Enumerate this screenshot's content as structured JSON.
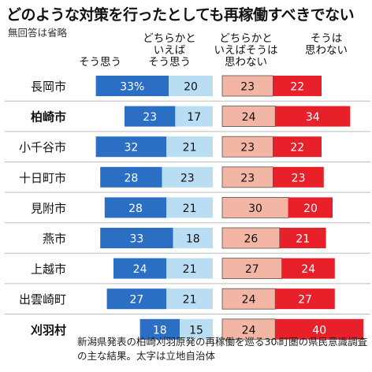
{
  "title": "どのような対策を行ったとしても再稼働すべきでない",
  "note": "無回答は省略",
  "footnote": "新潟県発表の柏崎刈羽原発の再稼働を巡る30ᵢ町圏の県民意識調査の主な結果。太字は立地自治体",
  "colors": {
    "strong_agree": "#2a6fc4",
    "agree": "#b9def3",
    "disagree": "#f3b5a4",
    "strong_disagree": "#e8202a"
  },
  "chart_data": {
    "type": "bar",
    "stacked": true,
    "orientation": "horizontal",
    "series_labels_as_column_headers": true,
    "categories": [
      "長岡市",
      "柏崎市",
      "小千谷市",
      "十日町市",
      "見附市",
      "燕市",
      "上越市",
      "出雲崎町",
      "刈羽村"
    ],
    "bold_categories": [
      "柏崎市",
      "刈羽村"
    ],
    "series": [
      {
        "name": "そう思う",
        "values": [
          33,
          23,
          32,
          28,
          28,
          33,
          24,
          27,
          18
        ]
      },
      {
        "name": "どちらかと\nいえば\nそう思う",
        "values": [
          20,
          17,
          21,
          23,
          21,
          18,
          21,
          21,
          15
        ]
      },
      {
        "name": "どちらかと\nいえばそうは\n思わない",
        "values": [
          23,
          24,
          23,
          23,
          30,
          26,
          27,
          24,
          24
        ]
      },
      {
        "name": "そうは\n思わない",
        "values": [
          22,
          34,
          22,
          23,
          20,
          21,
          24,
          27,
          40
        ]
      }
    ],
    "value_labels": [
      [
        "33%",
        "20",
        "23",
        "22"
      ],
      [
        "23",
        "17",
        "24",
        "34"
      ],
      [
        "32",
        "21",
        "23",
        "22"
      ],
      [
        "28",
        "23",
        "23",
        "23"
      ],
      [
        "28",
        "21",
        "30",
        "20"
      ],
      [
        "33",
        "18",
        "26",
        "21"
      ],
      [
        "24",
        "21",
        "27",
        "24"
      ],
      [
        "27",
        "21",
        "24",
        "27"
      ],
      [
        "18",
        "15",
        "24",
        "40"
      ]
    ],
    "xlim": [
      0,
      100
    ]
  }
}
